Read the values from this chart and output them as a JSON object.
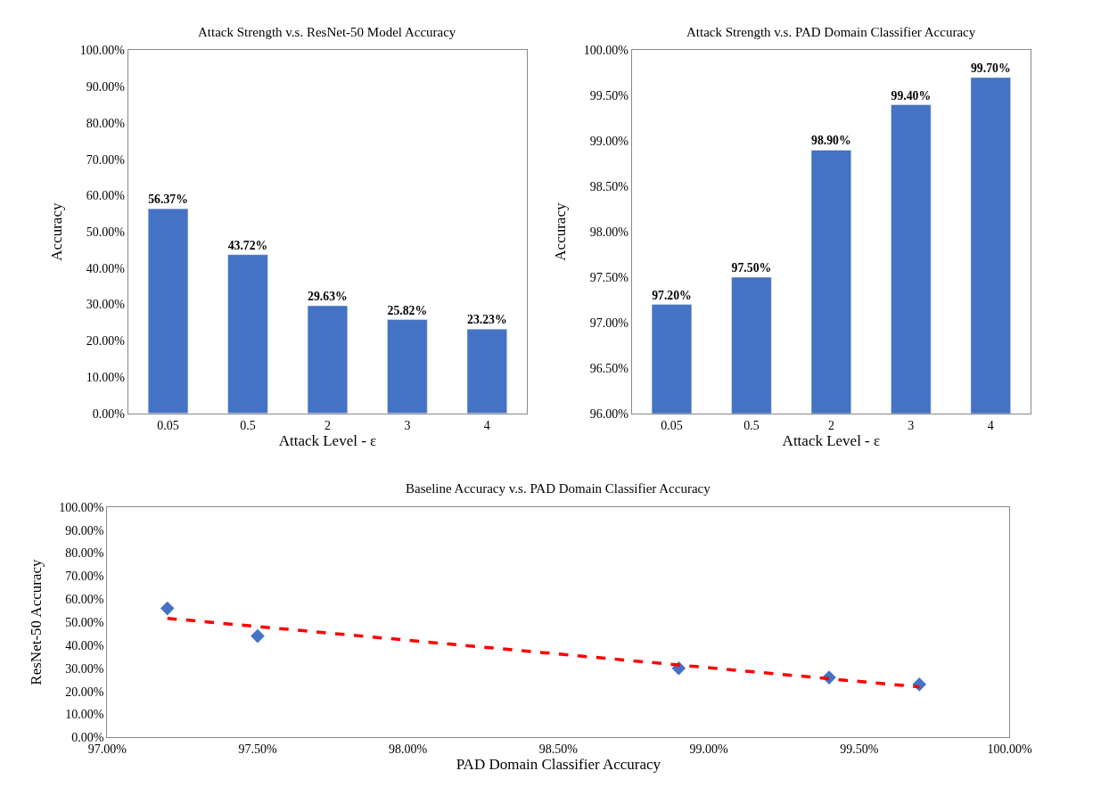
{
  "chart_data": [
    {
      "type": "bar",
      "title": "Attack Strength v.s. ResNet-50 Model Accuracy",
      "xlabel": "Attack Level - ε",
      "ylabel": "Accuracy",
      "categories": [
        "0.05",
        "0.5",
        "2",
        "3",
        "4"
      ],
      "values": [
        56.37,
        43.72,
        29.63,
        25.82,
        23.23
      ],
      "value_labels": [
        "56.37%",
        "43.72%",
        "29.63%",
        "25.82%",
        "23.23%"
      ],
      "color": "#4472c4",
      "ylim": [
        0,
        100
      ],
      "grid": false,
      "yticks": [
        {
          "value": 0,
          "label": "0.00%"
        },
        {
          "value": 10,
          "label": "10.00%"
        },
        {
          "value": 20,
          "label": "20.00%"
        },
        {
          "value": 30,
          "label": "30.00%"
        },
        {
          "value": 40,
          "label": "40.00%"
        },
        {
          "value": 50,
          "label": "50.00%"
        },
        {
          "value": 60,
          "label": "60.00%"
        },
        {
          "value": 70,
          "label": "70.00%"
        },
        {
          "value": 80,
          "label": "80.00%"
        },
        {
          "value": 90,
          "label": "90.00%"
        },
        {
          "value": 100,
          "label": "100.00%"
        }
      ]
    },
    {
      "type": "bar",
      "title": "Attack Strength v.s. PAD Domain Classifier Accuracy",
      "xlabel": "Attack Level - ε",
      "ylabel": "Accuracy",
      "categories": [
        "0.05",
        "0.5",
        "2",
        "3",
        "4"
      ],
      "values": [
        97.2,
        97.5,
        98.9,
        99.4,
        99.7
      ],
      "value_labels": [
        "97.20%",
        "97.50%",
        "98.90%",
        "99.40%",
        "99.70%"
      ],
      "color": "#4472c4",
      "ylim": [
        96,
        100
      ],
      "yticks": [
        {
          "value": 96,
          "label": "96.00%"
        },
        {
          "value": 96.5,
          "label": "96.50%"
        },
        {
          "value": 97,
          "label": "97.00%"
        },
        {
          "value": 97.5,
          "label": "97.50%"
        },
        {
          "value": 98,
          "label": "98.00%"
        },
        {
          "value": 98.5,
          "label": "98.50%"
        },
        {
          "value": 99,
          "label": "99.00%"
        },
        {
          "value": 99.5,
          "label": "99.50%"
        },
        {
          "value": 100,
          "label": "100.00%"
        }
      ],
      "grid": false
    },
    {
      "type": "scatter",
      "title": "Baseline Accuracy v.s. PAD Domain Classifier Accuracy",
      "xlabel": "PAD Domain Classifier Accuracy",
      "ylabel": "ResNet-50 Accuracy",
      "x": [
        97.2,
        97.5,
        98.9,
        99.4,
        99.7
      ],
      "grid": false,
      "series": [
        {
          "type": "scatter",
          "color": "#4472c4",
          "marker": "diamond",
          "values": [
            56,
            44,
            30,
            26,
            23
          ]
        },
        {
          "type": "line",
          "color": "#ff0000",
          "line_style": "dashed",
          "marker": "none",
          "x": [
            97.2,
            99.7
          ],
          "values": [
            51.7,
            21.9
          ]
        }
      ],
      "xlim": [
        97,
        100
      ],
      "xticks": [
        {
          "value": 97,
          "label": "97.00%"
        },
        {
          "value": 97.5,
          "label": "97.50%"
        },
        {
          "value": 98,
          "label": "98.00%"
        },
        {
          "value": 98.5,
          "label": "98.50%"
        },
        {
          "value": 99,
          "label": "99.00%"
        },
        {
          "value": 99.5,
          "label": "99.50%"
        },
        {
          "value": 100,
          "label": "100.00%"
        }
      ],
      "ylim": [
        0,
        100
      ],
      "yticks": [
        {
          "value": 0,
          "label": "0.00%"
        },
        {
          "value": 10,
          "label": "10.00%"
        },
        {
          "value": 20,
          "label": "20.00%"
        },
        {
          "value": 30,
          "label": "30.00%"
        },
        {
          "value": 40,
          "label": "40.00%"
        },
        {
          "value": 50,
          "label": "50.00%"
        },
        {
          "value": 60,
          "label": "60.00%"
        },
        {
          "value": 70,
          "label": "70.00%"
        },
        {
          "value": 80,
          "label": "80.00%"
        },
        {
          "value": 90,
          "label": "90.00%"
        },
        {
          "value": 100,
          "label": "100.00%"
        }
      ]
    }
  ]
}
